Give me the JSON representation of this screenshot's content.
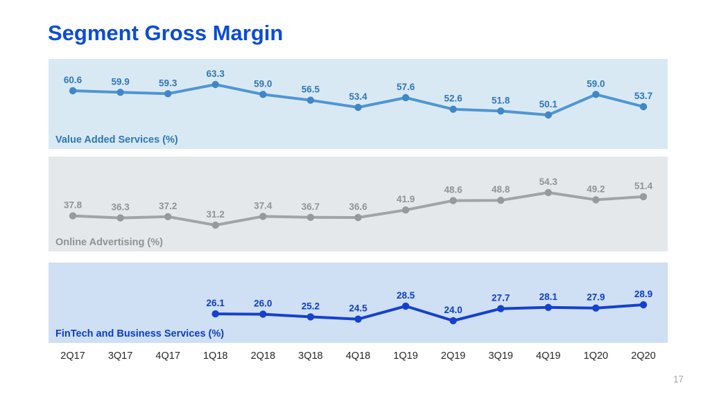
{
  "title": "Segment Gross Margin",
  "title_color": "#0a4cd8",
  "page_number": "17",
  "x_axis": {
    "categories": [
      "2Q17",
      "3Q17",
      "4Q17",
      "1Q18",
      "2Q18",
      "3Q18",
      "4Q18",
      "1Q19",
      "2Q19",
      "3Q19",
      "4Q19",
      "1Q20",
      "2Q20"
    ]
  },
  "chart_data": [
    {
      "type": "line",
      "name": "Value Added Services (%)",
      "categories": [
        "2Q17",
        "3Q17",
        "4Q17",
        "1Q18",
        "2Q18",
        "3Q18",
        "4Q18",
        "1Q19",
        "2Q19",
        "3Q19",
        "4Q19",
        "1Q20",
        "2Q20"
      ],
      "values": [
        60.6,
        59.9,
        59.3,
        63.3,
        59.0,
        56.5,
        53.4,
        57.6,
        52.6,
        51.8,
        50.1,
        59.0,
        53.7
      ],
      "ylim": [
        50.1,
        63.3
      ],
      "bg_color": "#d9e9f4",
      "line_color": "#4f96d4",
      "marker_color": "#3f87c8",
      "label_color": "#2f76b7",
      "legend_position": "bottom-left",
      "grid": false
    },
    {
      "type": "line",
      "name": "Online Advertising (%)",
      "categories": [
        "2Q17",
        "3Q17",
        "4Q17",
        "1Q18",
        "2Q18",
        "3Q18",
        "4Q18",
        "1Q19",
        "2Q19",
        "3Q19",
        "4Q19",
        "1Q20",
        "2Q20"
      ],
      "values": [
        37.8,
        36.3,
        37.2,
        31.2,
        37.4,
        36.7,
        36.6,
        41.9,
        48.6,
        48.8,
        54.3,
        49.2,
        51.4
      ],
      "ylim": [
        31.2,
        54.3
      ],
      "bg_color": "#e4e8eb",
      "line_color": "#a1a4a7",
      "marker_color": "#97999c",
      "label_color": "#8f9396",
      "legend_position": "bottom-left",
      "grid": false
    },
    {
      "type": "line",
      "name": "FinTech and Business Services (%)",
      "categories": [
        "2Q17",
        "3Q17",
        "4Q17",
        "1Q18",
        "2Q18",
        "3Q18",
        "4Q18",
        "1Q19",
        "2Q19",
        "3Q19",
        "4Q19",
        "1Q20",
        "2Q20"
      ],
      "values": [
        null,
        null,
        null,
        26.1,
        26.0,
        25.2,
        24.5,
        28.5,
        24.0,
        27.7,
        28.1,
        27.9,
        28.9
      ],
      "ylim": [
        24.0,
        28.9
      ],
      "bg_color": "#cfdff4",
      "line_color": "#1541cd",
      "marker_color": "#1541cd",
      "label_color": "#0c3ec9",
      "legend_position": "bottom-left",
      "grid": false
    }
  ]
}
